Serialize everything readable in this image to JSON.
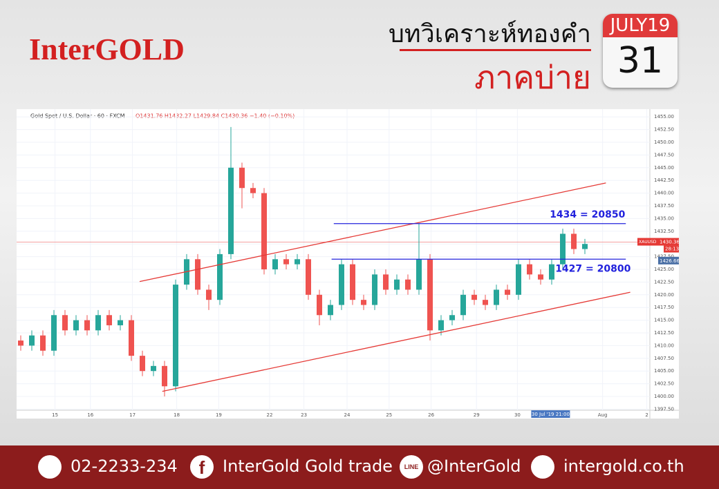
{
  "header": {
    "logo": "InterGOLD",
    "title": "บทวิเคราะห์ทองคำ",
    "subtitle": "ภาคบ่าย"
  },
  "calendar": {
    "month": "JULY19",
    "day": "31"
  },
  "footer": {
    "phone": "02-2233-234",
    "facebook": "InterGold Gold trade",
    "line": "@InterGold",
    "website": "intergold.co.th"
  },
  "chart_data": {
    "type": "candlestick",
    "symbol_label": "Gold Spot / U.S. Dollar · 60 · FXCM",
    "ohlc_label": "O1431.76 H1432.27 L1429.84 C1430.36 −1.40 (−0.10%)",
    "x": [
      0,
      1,
      2,
      3,
      4,
      5,
      6,
      7,
      8,
      9,
      10,
      11,
      12,
      13,
      14,
      15,
      16,
      17,
      18,
      19,
      20,
      21,
      22,
      23,
      24,
      25,
      26,
      27,
      28,
      29,
      30,
      31,
      32,
      33,
      34,
      35,
      36,
      37,
      38,
      39,
      40,
      41,
      42,
      43,
      44,
      45,
      46,
      47,
      48,
      49,
      50,
      51
    ],
    "open": [
      1411,
      1410,
      1412,
      1409,
      1416,
      1413,
      1415,
      1413,
      1416,
      1414,
      1415,
      1408,
      1405,
      1406,
      1402,
      1422,
      1427,
      1421,
      1419,
      1428,
      1445,
      1441,
      1440,
      1425,
      1427,
      1426,
      1427,
      1420,
      1416,
      1418,
      1426,
      1419,
      1418,
      1424,
      1421,
      1423,
      1421,
      1427,
      1413,
      1415,
      1416,
      1420,
      1419,
      1418,
      1421,
      1420,
      1426,
      1424,
      1423,
      1426,
      1432,
      1429
    ],
    "high": [
      1412,
      1413,
      1413,
      1417,
      1417,
      1416,
      1416,
      1417,
      1417,
      1416,
      1416,
      1409,
      1407,
      1407,
      1423,
      1428,
      1428,
      1422,
      1429,
      1453,
      1446,
      1442,
      1441,
      1428,
      1428,
      1428,
      1428,
      1421,
      1419,
      1427,
      1427,
      1420,
      1425,
      1425,
      1424,
      1424,
      1434,
      1428,
      1416,
      1417,
      1421,
      1421,
      1420,
      1422,
      1422,
      1427,
      1427,
      1425,
      1427,
      1433,
      1433,
      1431
    ],
    "low": [
      1409,
      1409,
      1408,
      1408,
      1412,
      1412,
      1412,
      1412,
      1413,
      1413,
      1407,
      1404,
      1404,
      1400,
      1401,
      1421,
      1420,
      1417,
      1418,
      1427,
      1437,
      1439,
      1424,
      1424,
      1425,
      1425,
      1419,
      1414,
      1415,
      1417,
      1418,
      1417,
      1417,
      1420,
      1420,
      1420,
      1420,
      1411,
      1412,
      1414,
      1415,
      1418,
      1417,
      1417,
      1419,
      1419,
      1423,
      1422,
      1422,
      1425,
      1428,
      1428
    ],
    "close": [
      1410,
      1412,
      1409,
      1416,
      1413,
      1415,
      1413,
      1416,
      1414,
      1415,
      1408,
      1405,
      1406,
      1402,
      1422,
      1427,
      1421,
      1419,
      1428,
      1445,
      1441,
      1440,
      1425,
      1427,
      1426,
      1427,
      1420,
      1416,
      1418,
      1426,
      1419,
      1418,
      1424,
      1421,
      1423,
      1421,
      1427,
      1413,
      1415,
      1416,
      1420,
      1419,
      1418,
      1421,
      1420,
      1426,
      1424,
      1423,
      1426,
      1432,
      1429,
      1430
    ],
    "up_color": "#26a69a",
    "down_color": "#ef5350",
    "xlim": [
      -0.125,
      56.875
    ],
    "xticks": [
      {
        "value": 3.1,
        "label": "15"
      },
      {
        "value": 6.3,
        "label": "16"
      },
      {
        "value": 10.1,
        "label": "17"
      },
      {
        "value": 14.1,
        "label": "18"
      },
      {
        "value": 17.9,
        "label": "19"
      },
      {
        "value": 22.5,
        "label": "22"
      },
      {
        "value": 25.6,
        "label": "23"
      },
      {
        "value": 29.5,
        "label": "24"
      },
      {
        "value": 33.3,
        "label": "25"
      },
      {
        "value": 37.1,
        "label": "26"
      },
      {
        "value": 41.2,
        "label": "29"
      },
      {
        "value": 44.9,
        "label": "30"
      },
      {
        "value": 52.6,
        "label": "Aug"
      },
      {
        "value": 56.6,
        "label": "2"
      }
    ],
    "ylim": [
      1396.74,
      1456.25
    ],
    "yticks": [
      {
        "value": 1397.5,
        "label": "1397.50"
      },
      {
        "value": 1400,
        "label": "1400.00"
      },
      {
        "value": 1402.5,
        "label": "1402.50"
      },
      {
        "value": 1405,
        "label": "1405.00"
      },
      {
        "value": 1407.5,
        "label": "1407.50"
      },
      {
        "value": 1410,
        "label": "1410.00"
      },
      {
        "value": 1412.5,
        "label": "1412.50"
      },
      {
        "value": 1415,
        "label": "1415.00"
      },
      {
        "value": 1417.5,
        "label": "1417.50"
      },
      {
        "value": 1420,
        "label": "1420.00"
      },
      {
        "value": 1422.5,
        "label": "1422.50"
      },
      {
        "value": 1425,
        "label": "1425.00"
      },
      {
        "value": 1427.5,
        "label": "1427.50"
      },
      {
        "value": 1430,
        "label": "1430.00"
      },
      {
        "value": 1432.5,
        "label": "1432.50"
      },
      {
        "value": 1435,
        "label": "1435.00"
      },
      {
        "value": 1437.5,
        "label": "1437.50"
      },
      {
        "value": 1440,
        "label": "1440.00"
      },
      {
        "value": 1442.5,
        "label": "1442.50"
      },
      {
        "value": 1445,
        "label": "1445.00"
      },
      {
        "value": 1447.5,
        "label": "1447.50"
      },
      {
        "value": 1450,
        "label": "1450.00"
      },
      {
        "value": 1452.5,
        "label": "1452.50"
      },
      {
        "value": 1455,
        "label": "1455.00"
      }
    ],
    "grid": true,
    "channel_color": "#e53935",
    "channels": [
      {
        "x": [
          10.75,
          52.9
        ],
        "y": [
          1422.6,
          1442.0
        ]
      },
      {
        "x": [
          12.8,
          55.1
        ],
        "y": [
          1401.0,
          1420.5
        ]
      }
    ],
    "level_color": "#2222dd",
    "levels": [
      {
        "value": 1434,
        "label": "1434 = 20850",
        "x": [
          28.3,
          54.7
        ],
        "label_side": "above"
      },
      {
        "value": 1427,
        "label": "1427 = 20800",
        "x": [
          28.1,
          54.7
        ],
        "label_side": "below"
      }
    ],
    "current_price": 1430.36,
    "symbol": "XAUUSD",
    "countdown": "28:13",
    "marker_price": 1426.66,
    "crosshair": {
      "x": 47.9,
      "label": "30 Jul '19  21:00"
    }
  }
}
